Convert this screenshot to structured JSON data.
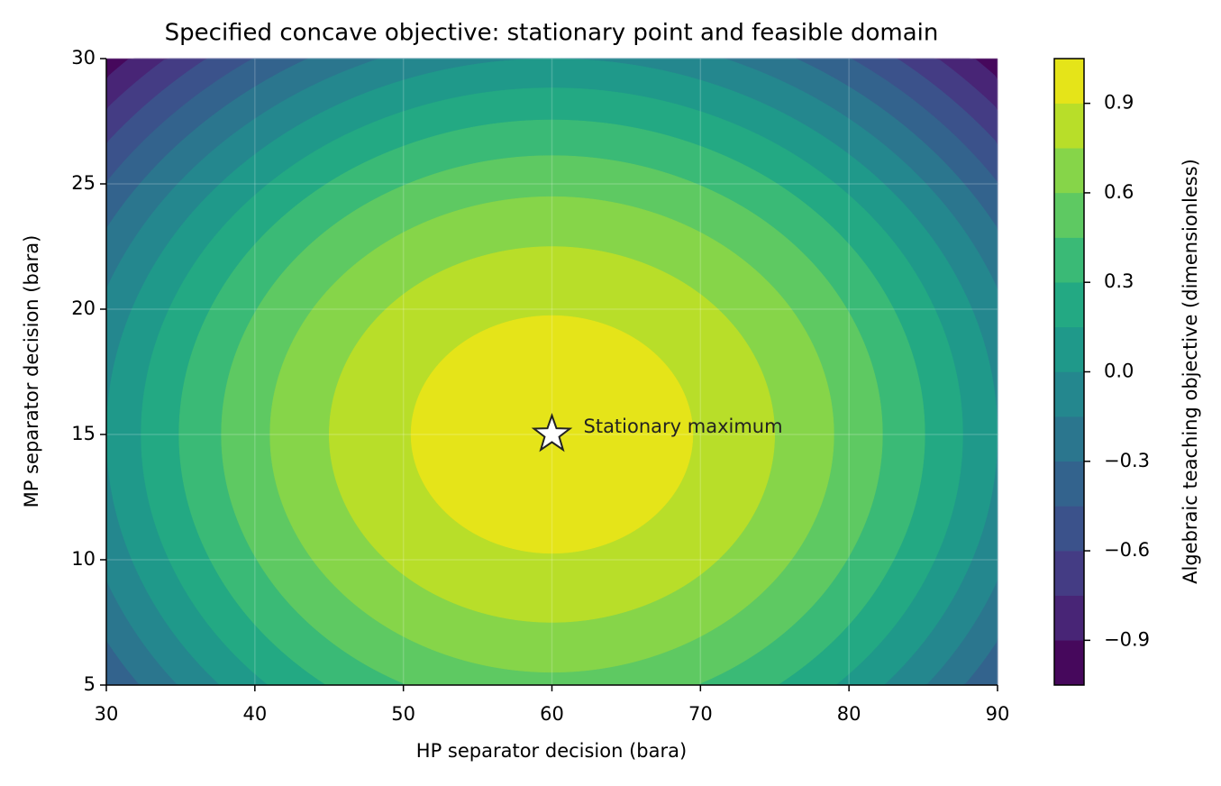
{
  "chart_data": {
    "type": "contourf",
    "title": "Specified concave objective: stationary point and feasible domain",
    "x_label": "HP separator decision (bara)",
    "y_label": "MP separator decision (bara)",
    "colorbar_label": "Algebraic teaching objective (dimensionless)",
    "x": [
      30,
      35,
      40,
      45,
      50,
      55,
      60,
      65,
      70,
      75,
      80,
      85,
      90
    ],
    "y": [
      5,
      7.5,
      10,
      12.5,
      15,
      17.5,
      20,
      22.5,
      25,
      27.5,
      30
    ],
    "z": [
      [
        -0.444,
        -0.139,
        0.111,
        0.306,
        0.444,
        0.528,
        0.556,
        0.528,
        0.444,
        0.306,
        0.111,
        -0.139,
        -0.444
      ],
      [
        -0.25,
        0.056,
        0.306,
        0.5,
        0.639,
        0.722,
        0.75,
        0.722,
        0.639,
        0.5,
        0.306,
        0.056,
        -0.25
      ],
      [
        -0.111,
        0.194,
        0.444,
        0.639,
        0.778,
        0.861,
        0.889,
        0.861,
        0.778,
        0.639,
        0.444,
        0.194,
        -0.111
      ],
      [
        -0.028,
        0.278,
        0.528,
        0.722,
        0.861,
        0.944,
        0.972,
        0.944,
        0.861,
        0.722,
        0.528,
        0.278,
        -0.028
      ],
      [
        0,
        0.306,
        0.556,
        0.75,
        0.889,
        0.972,
        1,
        0.972,
        0.889,
        0.75,
        0.556,
        0.306,
        0
      ],
      [
        -0.028,
        0.278,
        0.528,
        0.722,
        0.861,
        0.944,
        0.972,
        0.944,
        0.861,
        0.722,
        0.528,
        0.278,
        -0.028
      ],
      [
        -0.111,
        0.194,
        0.444,
        0.639,
        0.778,
        0.861,
        0.889,
        0.861,
        0.778,
        0.639,
        0.444,
        0.194,
        -0.111
      ],
      [
        -0.25,
        0.056,
        0.306,
        0.5,
        0.639,
        0.722,
        0.75,
        0.722,
        0.639,
        0.5,
        0.306,
        0.056,
        -0.25
      ],
      [
        -0.444,
        -0.139,
        0.111,
        0.306,
        0.444,
        0.528,
        0.556,
        0.528,
        0.444,
        0.306,
        0.111,
        -0.139,
        -0.444
      ],
      [
        -0.694,
        -0.389,
        -0.139,
        0.056,
        0.194,
        0.278,
        0.306,
        0.278,
        0.194,
        0.056,
        -0.139,
        -0.389,
        -0.694
      ],
      [
        -1,
        -0.694,
        -0.444,
        -0.25,
        -0.111,
        -0.028,
        0,
        -0.028,
        -0.111,
        -0.25,
        -0.444,
        -0.694,
        -1
      ]
    ],
    "levels": [
      -1.05,
      -0.9,
      -0.75,
      -0.6,
      -0.45,
      -0.3,
      -0.15,
      0,
      0.15,
      0.3,
      0.45,
      0.6,
      0.75,
      0.9,
      1.05
    ],
    "colors": [
      "#46085c",
      "#482576",
      "#443c84",
      "#3b528b",
      "#33638d",
      "#2b768e",
      "#24878e",
      "#1f998a",
      "#23a983",
      "#3aba76",
      "#5ec962",
      "#86d549",
      "#b8de29",
      "#e5e419"
    ],
    "xlim": [
      30,
      90
    ],
    "ylim": [
      5,
      30
    ],
    "xticks": [
      30,
      40,
      50,
      60,
      70,
      80,
      90
    ],
    "yticks": [
      5,
      10,
      15,
      20,
      25,
      30
    ],
    "colorbar_ticks": [
      {
        "value": -0.9,
        "label": "−0.9"
      },
      {
        "value": -0.6,
        "label": "−0.6"
      },
      {
        "value": -0.3,
        "label": "−0.3"
      },
      {
        "value": 0,
        "label": "0.0"
      },
      0.3,
      0.6,
      0.9
    ],
    "grid": true,
    "marker": {
      "x": 60,
      "y": 15,
      "label": "Stationary maximum"
    }
  }
}
